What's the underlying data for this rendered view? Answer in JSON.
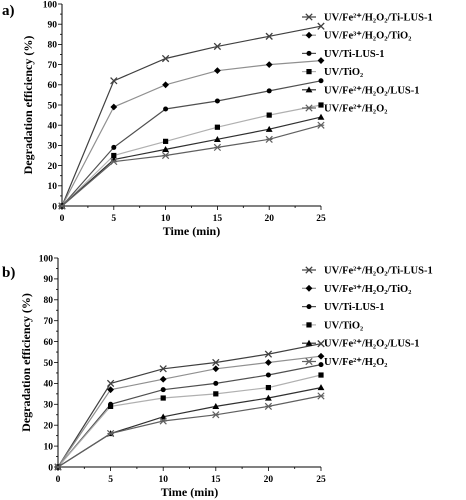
{
  "chart_data": [
    {
      "panel_label": "a)",
      "type": "line",
      "xlabel": "Time (min)",
      "ylabel": "Degradation efficiency (%)",
      "xlim": [
        0,
        25
      ],
      "ylim": [
        0,
        100
      ],
      "x_ticks": [
        0,
        5,
        10,
        15,
        20,
        25
      ],
      "y_ticks": [
        0,
        10,
        20,
        30,
        40,
        50,
        60,
        70,
        80,
        90,
        100
      ],
      "grid": false,
      "legend_position": "right",
      "x": [
        0,
        5,
        10,
        15,
        20,
        25
      ],
      "series": [
        {
          "name": "UV/Fe²⁺/H₂O₂/Ti-LUS-1",
          "marker": "x",
          "color": "#404040",
          "values": [
            0,
            62,
            73,
            79,
            84,
            89
          ]
        },
        {
          "name": "UV/Fe³⁺/H₂O₂/TiO₂",
          "marker": "diamond",
          "color": "#909090",
          "values": [
            0,
            49,
            60,
            67,
            70,
            72
          ]
        },
        {
          "name": "UV/Ti-LUS-1",
          "marker": "circle",
          "color": "#505050",
          "values": [
            0,
            29,
            48,
            52,
            57,
            62
          ]
        },
        {
          "name": "UV/TiO₂",
          "marker": "square",
          "color": "#b0b0b0",
          "values": [
            0,
            25,
            32,
            39,
            45,
            50
          ]
        },
        {
          "name": "UV/Fe²⁺/H₂O₂/LUS-1",
          "marker": "triangle",
          "color": "#303030",
          "values": [
            0,
            23,
            28,
            33,
            38,
            44
          ]
        },
        {
          "name": "UV/Fe²⁺/H₂O₂",
          "marker": "star",
          "color": "#606060",
          "values": [
            0,
            22,
            25,
            29,
            33,
            40
          ]
        }
      ]
    },
    {
      "panel_label": "b)",
      "type": "line",
      "xlabel": "Time (min)",
      "ylabel": "Degradation efficiency (%)",
      "xlim": [
        0,
        25
      ],
      "ylim": [
        0,
        100
      ],
      "x_ticks": [
        0,
        5,
        10,
        15,
        20,
        25
      ],
      "y_ticks": [
        0,
        10,
        20,
        30,
        40,
        50,
        60,
        70,
        80,
        90,
        100
      ],
      "grid": false,
      "legend_position": "right",
      "x": [
        0,
        5,
        10,
        15,
        20,
        25
      ],
      "series": [
        {
          "name": "UV/Fe²⁺/H₂O₂/Ti-LUS-1",
          "marker": "x",
          "color": "#404040",
          "values": [
            0,
            40,
            47,
            50,
            54,
            59
          ]
        },
        {
          "name": "UV/Fe³⁺/H₂O₂/TiO₂",
          "marker": "diamond",
          "color": "#909090",
          "values": [
            0,
            37,
            42,
            47,
            50,
            53
          ]
        },
        {
          "name": "UV/Ti-LUS-1",
          "marker": "circle",
          "color": "#505050",
          "values": [
            0,
            30,
            37,
            40,
            44,
            49
          ]
        },
        {
          "name": "UV/TiO₂",
          "marker": "square",
          "color": "#b0b0b0",
          "values": [
            0,
            29,
            33,
            35,
            38,
            44
          ]
        },
        {
          "name": "UV/Fe²⁺/H₂O₂/LUS-1",
          "marker": "triangle",
          "color": "#303030",
          "values": [
            0,
            16,
            24,
            29,
            33,
            38
          ]
        },
        {
          "name": "UV/Fe²⁺/H₂O₂",
          "marker": "star",
          "color": "#606060",
          "values": [
            0,
            16,
            22,
            25,
            29,
            34
          ]
        }
      ]
    }
  ]
}
